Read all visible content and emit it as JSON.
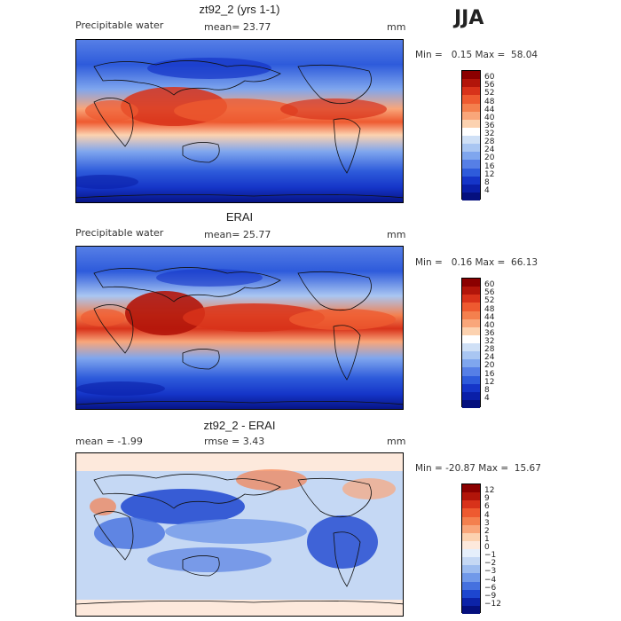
{
  "season": "JJA",
  "panels": [
    {
      "title": "zt92_2 (yrs 1-1)",
      "left_label": "Precipitable water",
      "center_label": "mean=  23.77",
      "units": "mm",
      "minmax": "Min =   0.15 Max =  58.04",
      "colorbar": {
        "ticks": [
          "60",
          "56",
          "52",
          "48",
          "44",
          "40",
          "36",
          "32",
          "28",
          "24",
          "20",
          "16",
          "12",
          "8",
          "4"
        ],
        "colors": [
          "#8b0000",
          "#b2150a",
          "#d8321a",
          "#ee5a30",
          "#f4804e",
          "#f9a67a",
          "#fcd2b0",
          "#ffffff",
          "#cfe0f6",
          "#a9c6f2",
          "#7fa6ee",
          "#567fe6",
          "#2e5bdb",
          "#1535c8",
          "#0a1fa8",
          "#05107e"
        ]
      }
    },
    {
      "title": "ERAI",
      "left_label": "Precipitable water",
      "center_label": "mean=  25.77",
      "units": "mm",
      "minmax": "Min =   0.16 Max =  66.13",
      "colorbar": {
        "ticks": [
          "60",
          "56",
          "52",
          "48",
          "44",
          "40",
          "36",
          "32",
          "28",
          "24",
          "20",
          "16",
          "12",
          "8",
          "4"
        ],
        "colors": [
          "#8b0000",
          "#b2150a",
          "#d8321a",
          "#ee5a30",
          "#f4804e",
          "#f9a67a",
          "#fcd2b0",
          "#ffffff",
          "#cfe0f6",
          "#a9c6f2",
          "#7fa6ee",
          "#567fe6",
          "#2e5bdb",
          "#1535c8",
          "#0a1fa8",
          "#05107e"
        ]
      }
    },
    {
      "title": "zt92_2 - ERAI",
      "left_label": "mean =  -1.99",
      "center_label": "rmse =   3.43",
      "units": "mm",
      "minmax": "Min = -20.87 Max =  15.67",
      "colorbar": {
        "ticks": [
          "12",
          "9",
          "6",
          "4",
          "3",
          "2",
          "1",
          "0",
          "−1",
          "−2",
          "−3",
          "−4",
          "−6",
          "−9",
          "−12"
        ],
        "colors": [
          "#8b0000",
          "#b2150a",
          "#d8321a",
          "#ee5a30",
          "#f4804e",
          "#f9a67a",
          "#fcd2b0",
          "#fde9dc",
          "#e6effb",
          "#c5d8f4",
          "#9dbcef",
          "#7199e9",
          "#4571df",
          "#1d46cf",
          "#0c23a8",
          "#05107e"
        ]
      }
    }
  ]
}
